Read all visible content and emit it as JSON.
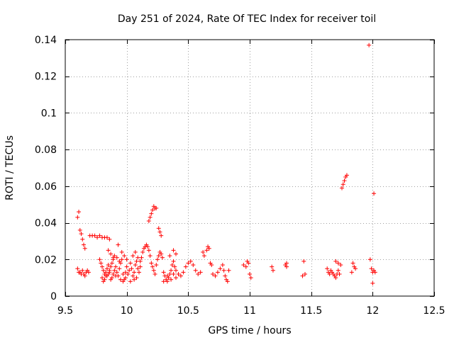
{
  "chart_data": {
    "type": "scatter",
    "title": "Day 251 of 2024, Rate Of TEC Index for receiver toil",
    "xlabel": "GPS time / hours",
    "ylabel": "ROTI / TECUs",
    "xlim": [
      9.5,
      12.5
    ],
    "ylim": [
      0,
      0.14
    ],
    "xticks": [
      9.5,
      10,
      10.5,
      11,
      11.5,
      12,
      12.5
    ],
    "xtick_labels": [
      "9.5",
      "10",
      "10.5",
      "11",
      "11.5",
      "12",
      "12.5"
    ],
    "yticks": [
      0,
      0.02,
      0.04,
      0.06,
      0.08,
      0.1,
      0.12,
      0.14
    ],
    "ytick_labels": [
      "0",
      "0.02",
      "0.04",
      "0.06",
      "0.08",
      "0.1",
      "0.12",
      "0.14"
    ],
    "grid": true,
    "marker": "+",
    "color": "#ff0000",
    "series": [
      {
        "name": "ROTI",
        "points": [
          [
            9.6,
            0.043
          ],
          [
            9.61,
            0.046
          ],
          [
            9.62,
            0.036
          ],
          [
            9.63,
            0.034
          ],
          [
            9.64,
            0.031
          ],
          [
            9.65,
            0.028
          ],
          [
            9.66,
            0.026
          ],
          [
            9.6,
            0.015
          ],
          [
            9.61,
            0.013
          ],
          [
            9.62,
            0.013
          ],
          [
            9.63,
            0.012
          ],
          [
            9.64,
            0.014
          ],
          [
            9.65,
            0.012
          ],
          [
            9.66,
            0.011
          ],
          [
            9.67,
            0.013
          ],
          [
            9.68,
            0.014
          ],
          [
            9.69,
            0.013
          ],
          [
            9.7,
            0.033
          ],
          [
            9.72,
            0.033
          ],
          [
            9.74,
            0.033
          ],
          [
            9.76,
            0.032
          ],
          [
            9.78,
            0.033
          ],
          [
            9.8,
            0.032
          ],
          [
            9.82,
            0.032
          ],
          [
            9.84,
            0.032
          ],
          [
            9.86,
            0.031
          ],
          [
            9.78,
            0.02
          ],
          [
            9.79,
            0.018
          ],
          [
            9.8,
            0.016
          ],
          [
            9.81,
            0.014
          ],
          [
            9.82,
            0.012
          ],
          [
            9.83,
            0.013
          ],
          [
            9.84,
            0.011
          ],
          [
            9.85,
            0.012
          ],
          [
            9.86,
            0.014
          ],
          [
            9.87,
            0.016
          ],
          [
            9.88,
            0.018
          ],
          [
            9.89,
            0.02
          ],
          [
            9.8,
            0.01
          ],
          [
            9.81,
            0.008
          ],
          [
            9.82,
            0.009
          ],
          [
            9.83,
            0.011
          ],
          [
            9.84,
            0.015
          ],
          [
            9.85,
            0.017
          ],
          [
            9.86,
            0.013
          ],
          [
            9.87,
            0.009
          ],
          [
            9.88,
            0.01
          ],
          [
            9.89,
            0.012
          ],
          [
            9.9,
            0.014
          ],
          [
            9.91,
            0.016
          ],
          [
            9.92,
            0.013
          ],
          [
            9.93,
            0.011
          ],
          [
            9.94,
            0.015
          ],
          [
            9.95,
            0.018
          ],
          [
            9.96,
            0.02
          ],
          [
            9.97,
            0.012
          ],
          [
            9.98,
            0.009
          ],
          [
            9.99,
            0.013
          ],
          [
            9.9,
            0.022
          ],
          [
            9.92,
            0.021
          ],
          [
            9.94,
            0.019
          ],
          [
            9.93,
            0.028
          ],
          [
            9.96,
            0.024
          ],
          [
            9.98,
            0.022
          ],
          [
            10.0,
            0.02
          ],
          [
            9.85,
            0.025
          ],
          [
            9.87,
            0.023
          ],
          [
            9.89,
            0.021
          ],
          [
            9.91,
            0.011
          ],
          [
            9.95,
            0.009
          ],
          [
            9.97,
            0.008
          ],
          [
            9.99,
            0.01
          ],
          [
            10.0,
            0.016
          ],
          [
            10.01,
            0.012
          ],
          [
            10.02,
            0.014
          ],
          [
            10.03,
            0.018
          ],
          [
            10.04,
            0.015
          ],
          [
            10.05,
            0.011
          ],
          [
            10.06,
            0.013
          ],
          [
            10.07,
            0.017
          ],
          [
            10.08,
            0.019
          ],
          [
            10.09,
            0.015
          ],
          [
            10.1,
            0.013
          ],
          [
            10.11,
            0.016
          ],
          [
            10.12,
            0.021
          ],
          [
            10.13,
            0.024
          ],
          [
            10.14,
            0.026
          ],
          [
            10.15,
            0.027
          ],
          [
            10.16,
            0.028
          ],
          [
            10.17,
            0.027
          ],
          [
            10.18,
            0.025
          ],
          [
            10.19,
            0.022
          ],
          [
            10.05,
            0.022
          ],
          [
            10.07,
            0.024
          ],
          [
            10.09,
            0.021
          ],
          [
            10.11,
            0.019
          ],
          [
            10.03,
            0.008
          ],
          [
            10.06,
            0.009
          ],
          [
            10.08,
            0.01
          ],
          [
            10.18,
            0.041
          ],
          [
            10.19,
            0.043
          ],
          [
            10.2,
            0.045
          ],
          [
            10.21,
            0.047
          ],
          [
            10.22,
            0.049
          ],
          [
            10.23,
            0.048
          ],
          [
            10.24,
            0.048
          ],
          [
            10.2,
            0.018
          ],
          [
            10.21,
            0.016
          ],
          [
            10.22,
            0.014
          ],
          [
            10.23,
            0.012
          ],
          [
            10.24,
            0.017
          ],
          [
            10.25,
            0.02
          ],
          [
            10.26,
            0.022
          ],
          [
            10.27,
            0.024
          ],
          [
            10.28,
            0.023
          ],
          [
            10.29,
            0.021
          ],
          [
            10.26,
            0.037
          ],
          [
            10.27,
            0.035
          ],
          [
            10.28,
            0.033
          ],
          [
            10.3,
            0.013
          ],
          [
            10.31,
            0.011
          ],
          [
            10.32,
            0.009
          ],
          [
            10.33,
            0.008
          ],
          [
            10.34,
            0.01
          ],
          [
            10.35,
            0.012
          ],
          [
            10.36,
            0.014
          ],
          [
            10.37,
            0.017
          ],
          [
            10.38,
            0.019
          ],
          [
            10.39,
            0.016
          ],
          [
            10.3,
            0.008
          ],
          [
            10.33,
            0.011
          ],
          [
            10.36,
            0.009
          ],
          [
            10.38,
            0.012
          ],
          [
            10.4,
            0.01
          ],
          [
            10.35,
            0.022
          ],
          [
            10.38,
            0.025
          ],
          [
            10.4,
            0.023
          ],
          [
            10.4,
            0.014
          ],
          [
            10.42,
            0.012
          ],
          [
            10.44,
            0.011
          ],
          [
            10.46,
            0.013
          ],
          [
            10.48,
            0.016
          ],
          [
            10.5,
            0.018
          ],
          [
            10.52,
            0.019
          ],
          [
            10.54,
            0.017
          ],
          [
            10.56,
            0.014
          ],
          [
            10.58,
            0.012
          ],
          [
            10.6,
            0.013
          ],
          [
            10.62,
            0.024
          ],
          [
            10.63,
            0.022
          ],
          [
            10.65,
            0.025
          ],
          [
            10.66,
            0.027
          ],
          [
            10.67,
            0.026
          ],
          [
            10.68,
            0.018
          ],
          [
            10.69,
            0.017
          ],
          [
            10.7,
            0.012
          ],
          [
            10.72,
            0.011
          ],
          [
            10.74,
            0.013
          ],
          [
            10.76,
            0.015
          ],
          [
            10.78,
            0.017
          ],
          [
            10.79,
            0.014
          ],
          [
            10.8,
            0.011
          ],
          [
            10.81,
            0.009
          ],
          [
            10.82,
            0.008
          ],
          [
            10.83,
            0.014
          ],
          [
            10.95,
            0.017
          ],
          [
            10.97,
            0.016
          ],
          [
            10.99,
            0.018
          ],
          [
            11.0,
            0.012
          ],
          [
            11.01,
            0.01
          ],
          [
            10.98,
            0.019
          ],
          [
            11.18,
            0.016
          ],
          [
            11.19,
            0.014
          ],
          [
            11.29,
            0.017
          ],
          [
            11.3,
            0.018
          ],
          [
            11.3,
            0.016
          ],
          [
            11.44,
            0.019
          ],
          [
            11.45,
            0.012
          ],
          [
            11.43,
            0.011
          ],
          [
            11.63,
            0.015
          ],
          [
            11.64,
            0.013
          ],
          [
            11.65,
            0.012
          ],
          [
            11.66,
            0.014
          ],
          [
            11.67,
            0.013
          ],
          [
            11.68,
            0.012
          ],
          [
            11.69,
            0.011
          ],
          [
            11.7,
            0.01
          ],
          [
            11.71,
            0.012
          ],
          [
            11.72,
            0.014
          ],
          [
            11.73,
            0.012
          ],
          [
            11.7,
            0.019
          ],
          [
            11.72,
            0.018
          ],
          [
            11.74,
            0.017
          ],
          [
            11.75,
            0.059
          ],
          [
            11.76,
            0.061
          ],
          [
            11.77,
            0.063
          ],
          [
            11.78,
            0.065
          ],
          [
            11.79,
            0.066
          ],
          [
            11.84,
            0.018
          ],
          [
            11.85,
            0.016
          ],
          [
            11.86,
            0.015
          ],
          [
            11.83,
            0.013
          ],
          [
            11.97,
            0.137
          ],
          [
            11.98,
            0.02
          ],
          [
            11.99,
            0.015
          ],
          [
            12.0,
            0.013
          ],
          [
            12.01,
            0.014
          ],
          [
            12.02,
            0.013
          ],
          [
            12.0,
            0.007
          ],
          [
            12.01,
            0.056
          ]
        ]
      }
    ]
  }
}
